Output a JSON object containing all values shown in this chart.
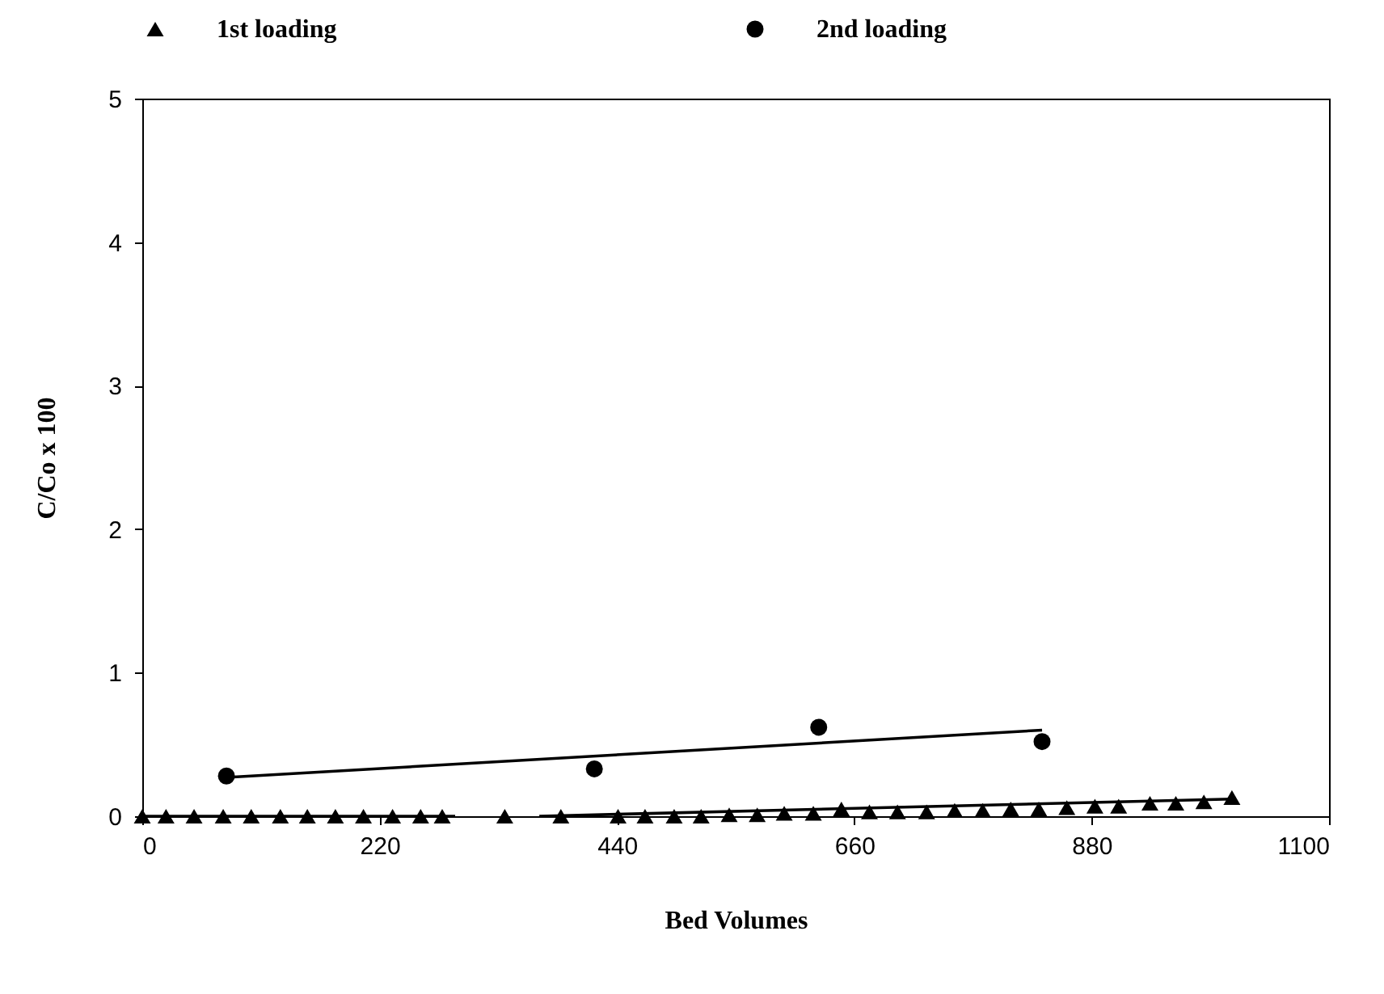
{
  "chart_data": {
    "type": "scatter",
    "xlabel": "Bed Volumes",
    "ylabel": "C/Co x 100",
    "xlim": [
      0,
      1100
    ],
    "xticks": [
      0,
      220,
      440,
      660,
      880,
      1100
    ],
    "ylim": [
      0,
      5
    ],
    "yticks": [
      0,
      1,
      2,
      3,
      4,
      5
    ],
    "grid": false,
    "legend": "top",
    "series": [
      {
        "name": "1st loading",
        "marker": "triangle",
        "color": "#000000",
        "x": [
          0,
          22,
          48,
          75,
          101,
          128,
          153,
          179,
          205,
          232,
          258,
          278,
          336,
          388,
          441,
          466,
          493,
          518,
          544,
          570,
          595,
          622,
          648,
          674,
          700,
          727,
          753,
          779,
          805,
          831,
          857,
          883,
          905,
          934,
          958,
          984,
          1010
        ],
        "values": [
          0,
          0,
          0,
          0,
          0,
          0,
          0,
          0,
          0,
          0,
          0,
          0,
          0,
          0,
          0,
          0,
          0,
          0,
          0.01,
          0.01,
          0.02,
          0.02,
          0.05,
          0.03,
          0.03,
          0.03,
          0.04,
          0.04,
          0.05,
          0.05,
          0.06,
          0.07,
          0.07,
          0.09,
          0.09,
          0.1,
          0.13
        ]
      },
      {
        "name": "2nd loading",
        "marker": "circle",
        "color": "#000000",
        "x": [
          78,
          419,
          627,
          834
        ],
        "values": [
          0.28,
          0.33,
          0.62,
          0.52
        ]
      },
      {
        "type": "line",
        "marker": "none",
        "color": "#000000",
        "x": [
          0,
          290
        ],
        "values": [
          0,
          0
        ]
      },
      {
        "type": "line",
        "marker": "none",
        "color": "#000000",
        "x": [
          368,
          1010
        ],
        "values": [
          0,
          0.12
        ]
      },
      {
        "type": "line",
        "marker": "none",
        "color": "#000000",
        "x": [
          78,
          834
        ],
        "values": [
          0.27,
          0.6
        ]
      }
    ]
  }
}
